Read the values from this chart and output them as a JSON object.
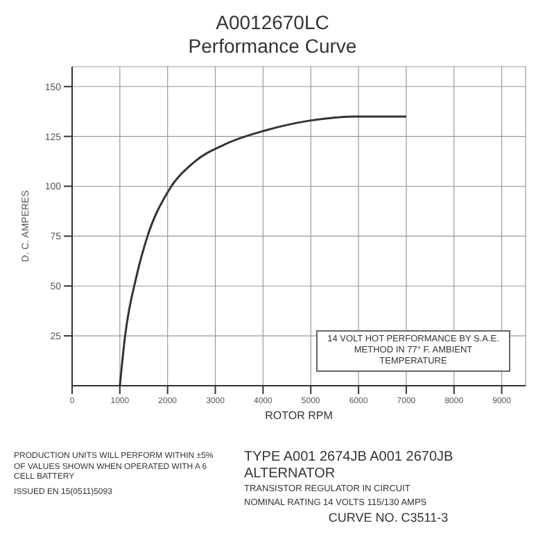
{
  "chart_data": {
    "type": "line",
    "title": "A0012670LC",
    "subtitle": "Performance Curve",
    "xlabel": "ROTOR RPM",
    "ylabel": "D. C. AMPERES",
    "x": [
      1000,
      1110,
      1350,
      1580,
      2000,
      2550,
      3200,
      4050,
      5000,
      6000,
      7000
    ],
    "series": [
      {
        "color": "#333333",
        "values": [
          0,
          25,
          55,
          75,
          97,
          112,
          121,
          128,
          133,
          135,
          135
        ]
      }
    ],
    "xlim": [
      0,
      9500
    ],
    "xticks": [
      0,
      1000,
      2000,
      3000,
      4000,
      5000,
      6000,
      7000,
      8000,
      9000
    ],
    "ylim": [
      0,
      160
    ],
    "yticks": [
      25,
      50,
      75,
      100,
      125,
      150
    ],
    "grid": true,
    "marker": "none",
    "line_style": "solid",
    "annotations": [
      "14 VOLT HOT PERFORMANCE BY S.A.E. METHOD IN 77° F. AMBIENT TEMPERATURE",
      "PRODUCTION UNITS WILL PERFORM WITHIN ±5% OF VALUES SHOWN WHEN OPERATED WITH A 6 CELL BATTERY",
      "ISSUED EN 15(0511)5093",
      "TYPE A001 2674JB A001 2670JB ALTERNATOR",
      "TRANSISTOR REGULATOR IN CIRCUIT",
      "NOMINAL RATING 14 VOLTS 115/130 AMPS",
      "CURVE NO. C3511-3"
    ]
  }
}
